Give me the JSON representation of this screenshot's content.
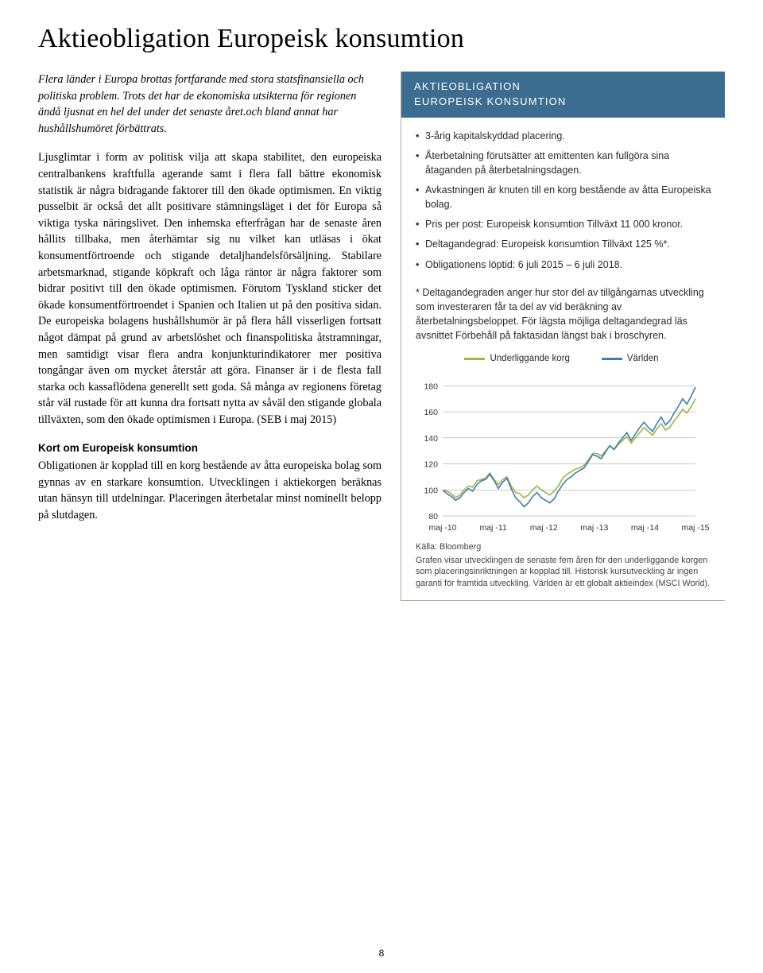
{
  "title": "Aktieobligation Europeisk konsumtion",
  "left": {
    "intro": "Flera länder i Europa brottas fortfarande med stora statsfinansiella och politiska problem. Trots det har de ekonomiska utsikterna för regionen ändå ljusnat en hel del under det senaste året.och bland annat har hushållshumöret förbättrats.",
    "body": "Ljusglimtar i form av politisk vilja att skapa stabilitet, den europeiska centralbankens kraftfulla agerande samt i flera fall bättre ekonomisk statistik är några bidragande faktorer till den ökade optimismen. En viktig pusselbit är också det allt positivare stämningsläget i det för Europa så viktiga tyska näringslivet. Den inhemska efterfrågan har de senaste åren hållits tillbaka, men återhämtar sig nu vilket kan utläsas i ökat konsumentförtroende och stigande detaljhandelsförsäljning. Stabilare arbetsmarknad, stigande köpkraft och låga räntor är några faktorer som bidrar positivt till den ökade optimismen. Förutom Tyskland sticker det ökade konsumentförtroendet i Spanien och Italien ut på den positiva sidan. De europeiska bolagens hushållshumör är på flera håll visserligen fortsatt något dämpat på grund av arbetslöshet och finanspolitiska åtstramningar, men samtidigt visar flera andra konjunkturindikatorer mer positiva tongångar även om mycket återstår att göra. Finanser är i de flesta fall starka och kassaflödena generellt sett goda. Så många av regionens företag står väl rustade för att kunna dra fortsatt nytta av såväl den stigande globala tillväxten, som den ökade optimismen i Europa. (SEB i maj 2015)",
    "subhead": "Kort om Europeisk konsumtion",
    "sub_body": "Obligationen är kopplad till en korg bestående av åtta europeiska bolag som gynnas av en starkare konsumtion. Utvecklingen i aktiekorgen beräknas utan hänsyn till utdelningar. Placeringen återbetalar minst nominellt belopp på slutdagen."
  },
  "sidebar": {
    "header_line1": "AKTIEOBLIGATION",
    "header_line2": "EUROPEISK KONSUMTION",
    "header_bg": "#3c6d90",
    "bullets": [
      "3-årig kapitalskyddad placering.",
      "Återbetalning förutsätter att emittenten kan fullgöra sina åtaganden på återbetalningsdagen.",
      "Avkastningen är knuten till en korg bestående av åtta Europeiska bolag.",
      "Pris per post: Europeisk konsumtion Tillväxt 11 000 kronor.",
      "Deltagandegrad: Europeisk konsumtion Tillväxt 125 %*.",
      "Obligationens löptid: 6 juli 2015 – 6 juli 2018."
    ],
    "footnote": "* Deltagandegraden anger hur stor del av tillgångarnas utveckling som investeraren får ta del av vid beräkning av återbetalningsbeloppet. För lägsta möjliga deltagandegrad läs avsnittet Förbehåll på faktasidan längst bak i broschyren."
  },
  "chart": {
    "type": "line",
    "legend": [
      {
        "label": "Underliggande korg",
        "color": "#9eb53f"
      },
      {
        "label": "Världen",
        "color": "#3980b5"
      }
    ],
    "y_ticks": [
      80,
      100,
      120,
      140,
      160,
      180
    ],
    "ylim": [
      80,
      190
    ],
    "x_labels": [
      "maj -10",
      "maj -11",
      "maj -12",
      "maj -13",
      "maj -14",
      "maj -15"
    ],
    "grid_color": "#999688",
    "axis_color": "#555",
    "bg": "#ffffff",
    "line_width": 1.6,
    "series": {
      "korg": [
        100,
        99,
        97,
        94,
        96,
        100,
        103,
        102,
        107,
        108,
        109,
        113,
        108,
        104,
        108,
        110,
        103,
        98,
        97,
        94,
        96,
        100,
        103,
        100,
        98,
        96,
        99,
        103,
        109,
        112,
        114,
        116,
        117,
        119,
        123,
        128,
        128,
        126,
        130,
        134,
        131,
        135,
        138,
        141,
        136,
        140,
        144,
        148,
        145,
        142,
        147,
        151,
        146,
        148,
        153,
        157,
        162,
        159,
        164,
        170
      ],
      "world": [
        100,
        97,
        95,
        92,
        94,
        98,
        101,
        99,
        104,
        107,
        108,
        112,
        107,
        101,
        106,
        109,
        101,
        94,
        91,
        87,
        90,
        95,
        98,
        94,
        92,
        90,
        93,
        99,
        104,
        108,
        110,
        113,
        115,
        117,
        122,
        127,
        126,
        124,
        129,
        134,
        131,
        136,
        140,
        144,
        138,
        143,
        148,
        152,
        148,
        145,
        151,
        156,
        150,
        153,
        159,
        164,
        170,
        166,
        172,
        179
      ]
    },
    "source": "Källa: Bloomberg",
    "caption": "Grafen visar utvecklingen de senaste fem åren för den underliggande korgen som placeringsinriktningen är kopplad till. Historisk kursutveckling är ingen garanti för framtida utveckling. Världen är ett globalt aktieindex (MSCI World)."
  },
  "page_number": "8"
}
